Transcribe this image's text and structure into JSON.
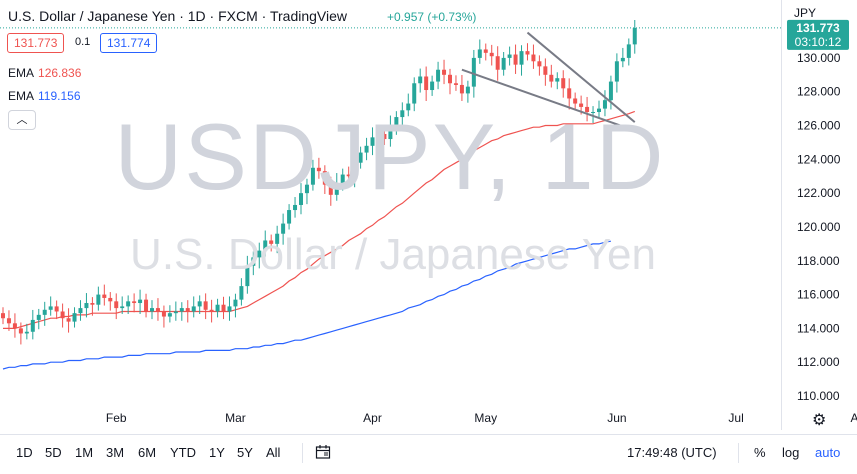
{
  "header": {
    "title": "U.S. Dollar / Japanese Yen · 1D · FXCM · TradingView",
    "change": "+0.957 (+0.73%)",
    "currency": "JPY"
  },
  "quote": {
    "bid": "131.773",
    "spread": "0.1",
    "ask": "131.774"
  },
  "indicators": [
    {
      "name": "EMA",
      "value": "126.836",
      "color": "#ef5350"
    },
    {
      "name": "EMA",
      "value": "119.156",
      "color": "#2962ff"
    }
  ],
  "collapse_icon": "chevron-up-icon",
  "watermark": {
    "symbol": "USDJPY, 1D",
    "description": "U.S. Dollar / Japanese Yen"
  },
  "last_price": {
    "price": "131.773",
    "countdown": "03:10:12",
    "color": "#26a69a"
  },
  "bottom": {
    "ranges": [
      "1D",
      "5D",
      "1M",
      "3M",
      "6M",
      "YTD",
      "1Y",
      "5Y",
      "All"
    ],
    "time": "17:49:48 (UTC)",
    "percent": "%",
    "log": "log",
    "auto": "auto"
  },
  "chart_data": {
    "type": "candlestick",
    "symbol": "USDJPY",
    "timeframe": "1D",
    "ylim": [
      109.5,
      132.5
    ],
    "y_ticks": [
      110,
      112,
      114,
      116,
      118,
      120,
      122,
      124,
      126,
      128,
      130
    ],
    "x_ticks": [
      {
        "label": "Feb",
        "index": 19
      },
      {
        "label": "Mar",
        "index": 39
      },
      {
        "label": "Apr",
        "index": 62
      },
      {
        "label": "May",
        "index": 81
      },
      {
        "label": "Jun",
        "index": 103
      },
      {
        "label": "Jul",
        "index": 123
      },
      {
        "label": "Aug",
        "index": 144
      }
    ],
    "up_color": "#26a69a",
    "down_color": "#ef5350",
    "closes": [
      114.6,
      114.3,
      114.0,
      113.7,
      113.8,
      114.5,
      114.8,
      115.1,
      115.3,
      115.0,
      114.6,
      114.4,
      114.9,
      115.2,
      115.5,
      115.4,
      116.0,
      115.8,
      115.6,
      115.2,
      115.3,
      115.6,
      115.5,
      115.7,
      115.0,
      115.2,
      115.0,
      114.7,
      114.9,
      115.0,
      115.2,
      115.0,
      115.3,
      115.6,
      115.1,
      115.0,
      115.4,
      115.0,
      115.3,
      115.7,
      116.5,
      117.7,
      118.2,
      118.6,
      119.2,
      119.0,
      119.6,
      120.2,
      121.0,
      121.3,
      122.0,
      122.5,
      123.5,
      123.3,
      122.5,
      121.9,
      122.6,
      123.1,
      123.0,
      123.8,
      124.4,
      124.8,
      125.3,
      125.5,
      125.2,
      126.0,
      126.5,
      126.9,
      127.3,
      128.5,
      128.9,
      128.1,
      128.6,
      129.3,
      129.0,
      128.5,
      128.4,
      127.9,
      128.3,
      130.0,
      130.5,
      130.3,
      130.1,
      129.3,
      130.0,
      130.2,
      129.6,
      130.4,
      130.2,
      129.8,
      129.5,
      129.0,
      128.6,
      128.8,
      128.2,
      127.6,
      127.3,
      127.1,
      126.8,
      126.8,
      127.0,
      127.5,
      128.6,
      129.8,
      130.0,
      130.8,
      131.773
    ],
    "ema_fast": [
      114.0,
      114.0,
      114.0,
      114.1,
      114.2,
      114.3,
      114.4,
      114.5,
      114.6,
      114.6,
      114.7,
      114.7,
      114.8,
      114.8,
      114.8,
      114.9,
      114.9,
      114.9,
      114.9,
      114.9,
      115.0,
      115.0,
      115.0,
      115.0,
      115.0,
      115.0,
      115.0,
      115.0,
      115.0,
      115.0,
      115.0,
      115.0,
      115.0,
      115.0,
      115.0,
      115.0,
      115.0,
      115.0,
      115.0,
      115.1,
      115.2,
      115.3,
      115.5,
      115.7,
      115.9,
      116.1,
      116.3,
      116.5,
      116.8,
      117.0,
      117.3,
      117.5,
      117.8,
      118.1,
      118.3,
      118.5,
      118.7,
      118.9,
      119.2,
      119.4,
      119.6,
      119.9,
      120.1,
      120.4,
      120.6,
      120.9,
      121.2,
      121.4,
      121.7,
      122.0,
      122.3,
      122.6,
      122.8,
      123.1,
      123.4,
      123.6,
      123.8,
      124.0,
      124.2,
      124.5,
      124.7,
      124.9,
      125.1,
      125.2,
      125.4,
      125.5,
      125.6,
      125.7,
      125.8,
      125.9,
      125.9,
      126.0,
      126.0,
      126.0,
      126.1,
      126.1,
      126.1,
      126.1,
      126.1,
      126.1,
      126.2,
      126.3,
      126.4,
      126.5,
      126.6,
      126.7,
      126.836
    ],
    "ema_slow": [
      111.6,
      111.7,
      111.7,
      111.8,
      111.8,
      111.9,
      111.9,
      111.9,
      112.0,
      112.0,
      112.0,
      112.1,
      112.1,
      112.1,
      112.2,
      112.2,
      112.2,
      112.3,
      112.3,
      112.3,
      112.3,
      112.4,
      112.4,
      112.4,
      112.5,
      112.5,
      112.5,
      112.5,
      112.5,
      112.6,
      112.6,
      112.6,
      112.6,
      112.6,
      112.7,
      112.7,
      112.7,
      112.7,
      112.7,
      112.8,
      112.8,
      112.8,
      112.9,
      112.9,
      113.0,
      113.0,
      113.1,
      113.1,
      113.2,
      113.3,
      113.3,
      113.4,
      113.5,
      113.6,
      113.7,
      113.8,
      113.9,
      114.0,
      114.1,
      114.2,
      114.3,
      114.4,
      114.5,
      114.6,
      114.7,
      114.8,
      114.9,
      115.0,
      115.2,
      115.3,
      115.4,
      115.6,
      115.7,
      115.9,
      116.0,
      116.2,
      116.3,
      116.5,
      116.6,
      116.8,
      116.9,
      117.1,
      117.2,
      117.4,
      117.5,
      117.6,
      117.8,
      117.9,
      118.0,
      118.1,
      118.2,
      118.3,
      118.4,
      118.5,
      118.6,
      118.7,
      118.7,
      118.8,
      118.9,
      119.0,
      119.0,
      119.1,
      119.156
    ],
    "trendlines": [
      {
        "from": {
          "index": 88,
          "price": 131.5
        },
        "to": {
          "index": 106,
          "price": 126.2
        }
      },
      {
        "from": {
          "index": 77,
          "price": 129.3
        },
        "to": {
          "index": 106,
          "price": 125.7
        }
      }
    ],
    "grid": false
  }
}
